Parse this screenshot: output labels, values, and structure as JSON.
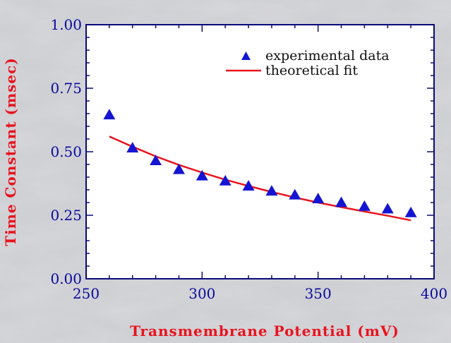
{
  "chart_data": {
    "type": "scatter",
    "xlabel": "Transmembrane Potential (mV)",
    "ylabel": "Time Constant (msec)",
    "xlim": [
      250,
      400
    ],
    "ylim": [
      0.0,
      1.0
    ],
    "x_ticks": [
      250,
      300,
      350,
      400
    ],
    "y_ticks": [
      0.0,
      0.25,
      0.5,
      0.75,
      1.0
    ],
    "x_tick_labels": [
      "250",
      "300",
      "350",
      "400"
    ],
    "y_tick_labels": [
      "0.00",
      "0.25",
      "0.50",
      "0.75",
      "1.00"
    ],
    "legend_placement": "top-right",
    "grid": false,
    "series": [
      {
        "name": "experimental data",
        "kind": "scatter",
        "marker": "triangle",
        "color": "#1414d2",
        "x": [
          260,
          270,
          280,
          290,
          300,
          310,
          320,
          330,
          340,
          350,
          360,
          370,
          380,
          390
        ],
        "y": [
          0.645,
          0.515,
          0.465,
          0.43,
          0.405,
          0.385,
          0.365,
          0.345,
          0.33,
          0.315,
          0.3,
          0.285,
          0.275,
          0.26
        ]
      },
      {
        "name": "theoretical fit",
        "kind": "line",
        "color": "#e8141e",
        "x": [
          260,
          270,
          280,
          290,
          300,
          310,
          320,
          330,
          340,
          350,
          360,
          370,
          380,
          390
        ],
        "y": [
          0.56,
          0.52,
          0.482,
          0.448,
          0.418,
          0.39,
          0.365,
          0.342,
          0.32,
          0.3,
          0.282,
          0.265,
          0.248,
          0.23
        ]
      }
    ],
    "colors": {
      "frame": "#0a0a7a",
      "tick_label": "#0a0a9a",
      "axis_title": "#e8141e",
      "plot_background": "#ffffff"
    }
  }
}
